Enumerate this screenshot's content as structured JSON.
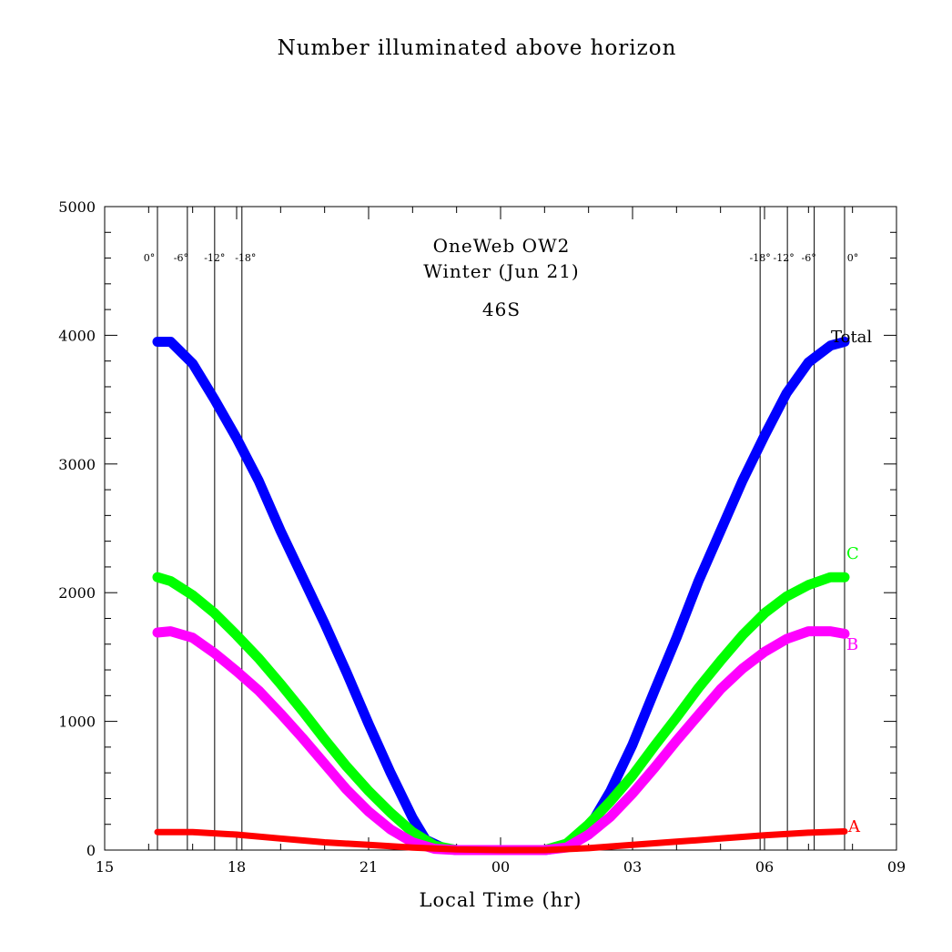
{
  "chart_data": {
    "type": "line",
    "title": "Number illuminated above horizon",
    "annotations": [
      "OneWeb OW2",
      "Winter (Jun 21)",
      "46S"
    ],
    "xlabel": "Local Time (hr)",
    "ylabel": "",
    "xlim": [
      15,
      33
    ],
    "ylim": [
      0,
      5000
    ],
    "x_tick_values": [
      15,
      18,
      21,
      24,
      27,
      30,
      33
    ],
    "x_tick_labels": [
      "15",
      "18",
      "21",
      "00",
      "03",
      "06",
      "09"
    ],
    "y_tick_values": [
      0,
      1000,
      2000,
      3000,
      4000,
      5000
    ],
    "y_tick_labels": [
      "0",
      "1000",
      "2000",
      "3000",
      "4000",
      "5000"
    ],
    "grid": false,
    "sun_lines": [
      {
        "x": 16.2,
        "label": "0°"
      },
      {
        "x": 16.88,
        "label": "-6°"
      },
      {
        "x": 17.5,
        "label": "-12°"
      },
      {
        "x": 18.12,
        "label": "-18°"
      },
      {
        "x": 29.9,
        "label": "-18°"
      },
      {
        "x": 30.52,
        "label": "-12°"
      },
      {
        "x": 31.13,
        "label": "-6°"
      },
      {
        "x": 31.82,
        "label": "0°"
      }
    ],
    "series": [
      {
        "name": "Total",
        "color": "#0000ff",
        "x": [
          16.2,
          16.5,
          17.0,
          17.5,
          18.0,
          18.5,
          19.0,
          19.5,
          20.0,
          20.5,
          21.0,
          21.5,
          22.0,
          22.3,
          22.7,
          23.0,
          24.0,
          25.0,
          25.4,
          25.8,
          26.0,
          26.5,
          27.0,
          27.5,
          28.0,
          28.5,
          29.0,
          29.5,
          30.0,
          30.5,
          31.0,
          31.5,
          31.82
        ],
        "y": [
          3950,
          3950,
          3780,
          3500,
          3200,
          2870,
          2480,
          2120,
          1760,
          1380,
          980,
          600,
          250,
          80,
          15,
          0,
          0,
          0,
          20,
          90,
          170,
          460,
          820,
          1240,
          1650,
          2090,
          2480,
          2870,
          3220,
          3550,
          3790,
          3920,
          3950
        ]
      },
      {
        "name": "C",
        "color": "#00ff00",
        "x": [
          16.2,
          16.5,
          17.0,
          17.5,
          18.0,
          18.5,
          19.0,
          19.5,
          20.0,
          20.5,
          21.0,
          21.5,
          22.0,
          22.5,
          23.0,
          23.5,
          24.0,
          25.0,
          25.5,
          26.0,
          26.5,
          27.0,
          27.5,
          28.0,
          28.5,
          29.0,
          29.5,
          30.0,
          30.5,
          31.0,
          31.5,
          31.82
        ],
        "y": [
          2120,
          2090,
          1980,
          1840,
          1670,
          1490,
          1290,
          1080,
          860,
          650,
          460,
          290,
          140,
          35,
          0,
          0,
          0,
          0,
          50,
          200,
          380,
          580,
          810,
          1030,
          1260,
          1470,
          1670,
          1840,
          1970,
          2060,
          2120,
          2120
        ]
      },
      {
        "name": "B",
        "color": "#ff00ff",
        "x": [
          16.2,
          16.5,
          17.0,
          17.5,
          18.0,
          18.5,
          19.0,
          19.5,
          20.0,
          20.5,
          21.0,
          21.5,
          22.0,
          22.5,
          23.0,
          23.5,
          24.0,
          25.0,
          25.5,
          26.0,
          26.5,
          27.0,
          27.5,
          28.0,
          28.5,
          29.0,
          29.5,
          30.0,
          30.5,
          31.0,
          31.5,
          31.82
        ],
        "y": [
          1690,
          1700,
          1650,
          1530,
          1390,
          1240,
          1060,
          870,
          670,
          470,
          300,
          160,
          60,
          10,
          0,
          0,
          0,
          0,
          20,
          120,
          260,
          440,
          640,
          850,
          1050,
          1250,
          1410,
          1540,
          1640,
          1700,
          1700,
          1680
        ]
      },
      {
        "name": "A",
        "color": "#ff0000",
        "x": [
          16.2,
          17.0,
          18.0,
          19.0,
          20.0,
          21.0,
          22.0,
          23.0,
          24.0,
          25.0,
          26.0,
          27.0,
          28.0,
          29.0,
          30.0,
          31.0,
          31.82
        ],
        "y": [
          140,
          140,
          120,
          90,
          60,
          40,
          20,
          5,
          0,
          0,
          15,
          40,
          65,
          90,
          115,
          135,
          145
        ]
      }
    ]
  }
}
